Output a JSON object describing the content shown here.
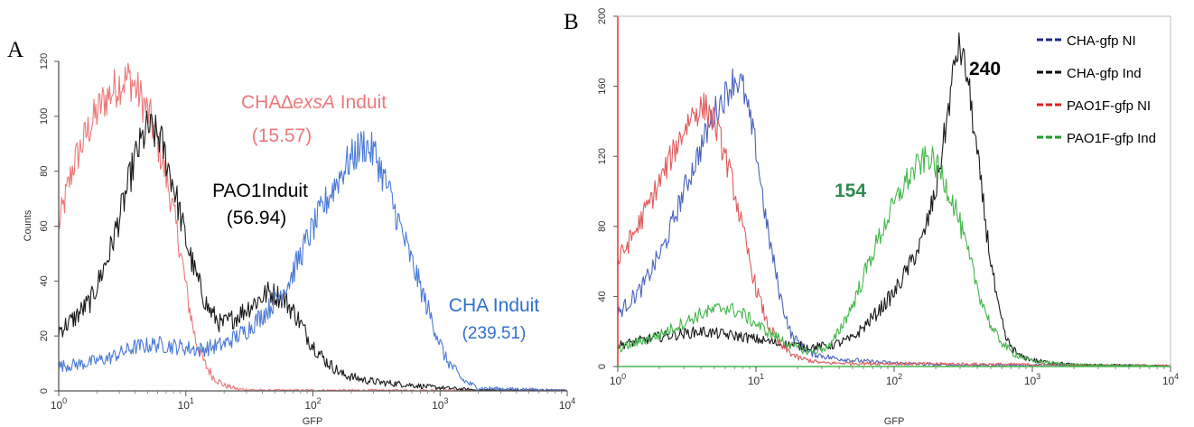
{
  "chart_data": [
    {
      "panel_label": "A",
      "type": "line",
      "ylabel": "Counts",
      "xlabel": "GFP",
      "x_scale": "log",
      "xlim": [
        1,
        10000
      ],
      "ylim": [
        0,
        120
      ],
      "x_ticks": [
        {
          "value": 1,
          "base": "10",
          "exp": "0"
        },
        {
          "value": 10,
          "base": "10",
          "exp": "1"
        },
        {
          "value": 100,
          "base": "10",
          "exp": "2"
        },
        {
          "value": 1000,
          "base": "10",
          "exp": "3"
        },
        {
          "value": 10000,
          "base": "10",
          "exp": "4"
        }
      ],
      "y_ticks": [
        "0",
        "20",
        "40",
        "60",
        "80",
        "100",
        "120"
      ],
      "grid": false,
      "series": [
        {
          "color": "#ee7878",
          "points": [
            [
              1,
              60
            ],
            [
              1.3,
              82
            ],
            [
              1.7,
              95
            ],
            [
              2.2,
              105
            ],
            [
              3,
              112
            ],
            [
              3.6,
              114
            ],
            [
              4.3,
              108
            ],
            [
              5.2,
              100
            ],
            [
              6.2,
              88
            ],
            [
              7.5,
              72
            ],
            [
              9,
              52
            ],
            [
              10.5,
              32
            ],
            [
              12,
              18
            ],
            [
              14,
              10
            ],
            [
              16.5,
              5
            ],
            [
              20,
              2
            ],
            [
              26,
              0.6
            ],
            [
              40,
              0.2
            ],
            [
              10000,
              0.2
            ]
          ]
        },
        {
          "color": "#1a1a1a",
          "points": [
            [
              1,
              22
            ],
            [
              1.3,
              26
            ],
            [
              1.8,
              33
            ],
            [
              2.5,
              50
            ],
            [
              3.3,
              70
            ],
            [
              4,
              85
            ],
            [
              5,
              96
            ],
            [
              6.3,
              92
            ],
            [
              8,
              75
            ],
            [
              10,
              55
            ],
            [
              12,
              42
            ],
            [
              15,
              30
            ],
            [
              19,
              24
            ],
            [
              25,
              27
            ],
            [
              32,
              31
            ],
            [
              45,
              36
            ],
            [
              58,
              34
            ],
            [
              75,
              27
            ],
            [
              95,
              18
            ],
            [
              125,
              11
            ],
            [
              170,
              6
            ],
            [
              250,
              4
            ],
            [
              350,
              3
            ],
            [
              500,
              2.5
            ],
            [
              800,
              1.5
            ],
            [
              1300,
              0.8
            ],
            [
              2000,
              0.3
            ],
            [
              10000,
              0.1
            ]
          ]
        },
        {
          "color": "#4a7ad8",
          "points": [
            [
              1,
              9
            ],
            [
              1.6,
              10
            ],
            [
              2.5,
              12
            ],
            [
              4,
              16
            ],
            [
              6,
              17
            ],
            [
              9,
              16
            ],
            [
              13,
              15
            ],
            [
              20,
              17
            ],
            [
              30,
              22
            ],
            [
              45,
              30
            ],
            [
              65,
              40
            ],
            [
              90,
              55
            ],
            [
              130,
              70
            ],
            [
              180,
              82
            ],
            [
              250,
              90
            ],
            [
              310,
              86
            ],
            [
              400,
              72
            ],
            [
              550,
              52
            ],
            [
              800,
              30
            ],
            [
              1100,
              12
            ],
            [
              1500,
              4
            ],
            [
              2000,
              1
            ],
            [
              10000,
              0.2
            ]
          ]
        }
      ],
      "annotations": [
        {
          "parts": [
            {
              "text": "CHA∆",
              "italic": false
            },
            {
              "text": "exsA",
              "italic": true
            },
            {
              "text": " Induit",
              "italic": false
            }
          ],
          "color": "#ee7878"
        },
        {
          "text": "(15.57)",
          "color": "#ee7878"
        },
        {
          "text": "PAO1Induit",
          "color": "#000000"
        },
        {
          "text": "(56.94)",
          "color": "#000000"
        },
        {
          "text": "CHA Induit",
          "color": "#2f6fd6"
        },
        {
          "text": "(239.51)",
          "color": "#2f6fd6"
        }
      ]
    },
    {
      "panel_label": "B",
      "type": "line",
      "xlabel": "GFP",
      "x_scale": "log",
      "xlim": [
        1,
        10000
      ],
      "ylim": [
        0,
        200
      ],
      "x_ticks": [
        {
          "value": 1,
          "base": "10",
          "exp": "0"
        },
        {
          "value": 10,
          "base": "10",
          "exp": "1"
        },
        {
          "value": 100,
          "base": "10",
          "exp": "2"
        },
        {
          "value": 1000,
          "base": "10",
          "exp": "3"
        },
        {
          "value": 10000,
          "base": "10",
          "exp": "4"
        }
      ],
      "y_ticks": [
        "0",
        "40",
        "80",
        "120",
        "160",
        "200"
      ],
      "grid": false,
      "legend_position": "top-right",
      "legend": [
        {
          "label": "CHA-gfp NI",
          "color": "#1f2a8a"
        },
        {
          "label": "CHA-gfp Ind",
          "color": "#000000"
        },
        {
          "label": "PAO1F-gfp NI",
          "color": "#e02020"
        },
        {
          "label": "PAO1F-gfp Ind",
          "color": "#1f9a2a"
        }
      ],
      "series": [
        {
          "name": "CHA-gfp NI",
          "color": "#4a63c0",
          "points": [
            [
              1,
              30
            ],
            [
              1.5,
              45
            ],
            [
              2.2,
              70
            ],
            [
              3,
              100
            ],
            [
              4,
              125
            ],
            [
              5,
              145
            ],
            [
              6,
              155
            ],
            [
              7,
              165
            ],
            [
              8,
              160
            ],
            [
              10,
              125
            ],
            [
              12,
              80
            ],
            [
              15,
              40
            ],
            [
              18,
              18
            ],
            [
              24,
              8
            ],
            [
              35,
              5
            ],
            [
              60,
              3
            ],
            [
              100,
              2
            ],
            [
              200,
              1
            ],
            [
              10000,
              0.5
            ]
          ]
        },
        {
          "name": "CHA-gfp Ind",
          "color": "#1a1a1a",
          "points": [
            [
              1,
              12
            ],
            [
              2,
              17
            ],
            [
              4,
              20
            ],
            [
              8,
              17
            ],
            [
              15,
              13
            ],
            [
              25,
              11
            ],
            [
              35,
              12
            ],
            [
              50,
              16
            ],
            [
              70,
              28
            ],
            [
              100,
              42
            ],
            [
              130,
              58
            ],
            [
              160,
              72
            ],
            [
              200,
              100
            ],
            [
              240,
              140
            ],
            [
              280,
              178
            ],
            [
              300,
              182
            ],
            [
              340,
              165
            ],
            [
              400,
              120
            ],
            [
              480,
              70
            ],
            [
              560,
              35
            ],
            [
              650,
              15
            ],
            [
              800,
              6
            ],
            [
              1100,
              3
            ],
            [
              2000,
              1
            ],
            [
              10000,
              0.3
            ]
          ]
        },
        {
          "name": "PAO1F-gfp NI",
          "color": "#e05a5a",
          "points": [
            [
              1,
              60
            ],
            [
              1.4,
              80
            ],
            [
              2,
              105
            ],
            [
              2.8,
              130
            ],
            [
              3.5,
              145
            ],
            [
              4.3,
              148
            ],
            [
              5,
              140
            ],
            [
              6,
              120
            ],
            [
              7,
              100
            ],
            [
              8,
              78
            ],
            [
              10,
              45
            ],
            [
              12,
              25
            ],
            [
              15,
              12
            ],
            [
              20,
              5
            ],
            [
              30,
              2
            ],
            [
              10000,
              0.5
            ]
          ]
        },
        {
          "name": "PAO1F-gfp Ind",
          "color": "#43b84a",
          "points": [
            [
              1,
              10
            ],
            [
              2,
              18
            ],
            [
              3,
              25
            ],
            [
              4,
              30
            ],
            [
              6,
              34
            ],
            [
              8,
              30
            ],
            [
              12,
              20
            ],
            [
              18,
              12
            ],
            [
              25,
              8
            ],
            [
              35,
              12
            ],
            [
              50,
              35
            ],
            [
              70,
              65
            ],
            [
              90,
              85
            ],
            [
              120,
              105
            ],
            [
              150,
              115
            ],
            [
              180,
              120
            ],
            [
              220,
              110
            ],
            [
              280,
              90
            ],
            [
              340,
              65
            ],
            [
              420,
              40
            ],
            [
              520,
              20
            ],
            [
              700,
              8
            ],
            [
              1000,
              3
            ],
            [
              2000,
              1
            ],
            [
              10000,
              0.2
            ]
          ]
        }
      ],
      "annotations": [
        {
          "text": "240",
          "color": "#000000"
        },
        {
          "text": "154",
          "color": "#2e8b4e"
        }
      ]
    }
  ]
}
